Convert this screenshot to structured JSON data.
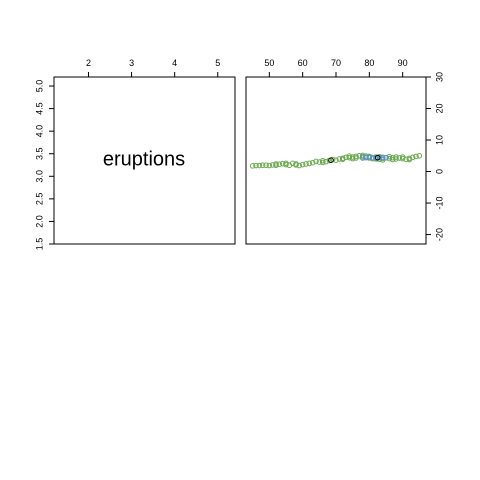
{
  "chart_data": [
    {
      "type": "text",
      "label": "eruptions",
      "xlim": [
        1.2,
        5.4
      ],
      "ylim": [
        1.5,
        5.2
      ],
      "top_ticks": [
        "2",
        "3",
        "4",
        "5"
      ],
      "left_ticks": [
        "1.5",
        "2.0",
        "2.5",
        "3.0",
        "3.5",
        "4.0",
        "4.5",
        "5.0"
      ]
    },
    {
      "type": "scatter",
      "xlim": [
        43,
        97
      ],
      "ylim": [
        -23,
        30
      ],
      "top_ticks": [
        "50",
        "60",
        "70",
        "80",
        "90"
      ],
      "right_ticks": [
        "-20",
        "-10",
        "0",
        "10",
        "20",
        "30"
      ],
      "colors": {
        "points": "#6aaa4e",
        "dense": "#5b8fd0",
        "center": "#000000",
        "frame": "#000000"
      },
      "series": [
        {
          "values": [
            [
              45,
              1.8
            ],
            [
              47,
              1.9
            ],
            [
              48,
              2.0
            ],
            [
              49,
              2.0
            ],
            [
              50,
              1.9
            ],
            [
              51,
              2.1
            ],
            [
              52,
              2.0
            ],
            [
              53,
              2.3
            ],
            [
              54,
              2.5
            ],
            [
              55,
              2.2
            ],
            [
              56,
              2.0
            ],
            [
              57,
              2.6
            ],
            [
              58,
              2.1
            ],
            [
              59,
              1.9
            ],
            [
              60,
              2.2
            ],
            [
              61,
              2.4
            ],
            [
              62,
              2.6
            ],
            [
              63,
              2.8
            ],
            [
              64,
              3.2
            ],
            [
              65,
              3.0
            ],
            [
              66,
              2.9
            ],
            [
              67,
              3.1
            ],
            [
              68,
              3.5
            ],
            [
              69,
              3.8
            ],
            [
              70,
              3.6
            ],
            [
              71,
              4.0
            ],
            [
              72,
              4.2
            ],
            [
              73,
              4.5
            ],
            [
              74,
              4.4
            ],
            [
              75,
              4.6
            ],
            [
              76,
              4.8
            ],
            [
              77,
              5.0
            ],
            [
              78,
              4.7
            ],
            [
              79,
              4.5
            ],
            [
              80,
              4.3
            ],
            [
              81,
              4.1
            ],
            [
              82,
              4.0
            ],
            [
              83,
              3.9
            ],
            [
              84,
              4.2
            ],
            [
              85,
              4.4
            ],
            [
              86,
              4.1
            ],
            [
              87,
              3.8
            ],
            [
              88,
              4.0
            ],
            [
              89,
              4.3
            ],
            [
              90,
              4.1
            ],
            [
              91,
              3.9
            ],
            [
              92,
              4.2
            ],
            [
              93,
              4.5
            ],
            [
              94,
              4.8
            ],
            [
              95,
              5.0
            ],
            [
              46,
              1.9
            ],
            [
              52,
              2.4
            ],
            [
              55,
              2.6
            ],
            [
              58,
              2.4
            ],
            [
              66,
              3.4
            ],
            [
              72,
              3.9
            ],
            [
              74,
              4.9
            ],
            [
              76,
              4.3
            ],
            [
              78,
              5.1
            ],
            [
              80,
              4.8
            ],
            [
              82,
              4.6
            ],
            [
              84,
              3.7
            ],
            [
              86,
              4.7
            ],
            [
              88,
              4.6
            ],
            [
              90,
              4.6
            ],
            [
              92,
              3.8
            ],
            [
              75,
              4.1
            ],
            [
              79,
              4.9
            ],
            [
              83,
              4.7
            ],
            [
              87,
              4.4
            ]
          ]
        },
        {
          "values": [
            [
              78,
              4.3
            ],
            [
              79,
              4.4
            ],
            [
              80,
              4.5
            ],
            [
              81,
              4.4
            ],
            [
              82,
              4.3
            ],
            [
              83,
              4.4
            ],
            [
              84,
              4.5
            ],
            [
              85,
              4.4
            ]
          ]
        },
        {
          "values": [
            [
              68.5,
              3.6
            ],
            [
              82.5,
              4.4
            ]
          ]
        }
      ]
    }
  ]
}
